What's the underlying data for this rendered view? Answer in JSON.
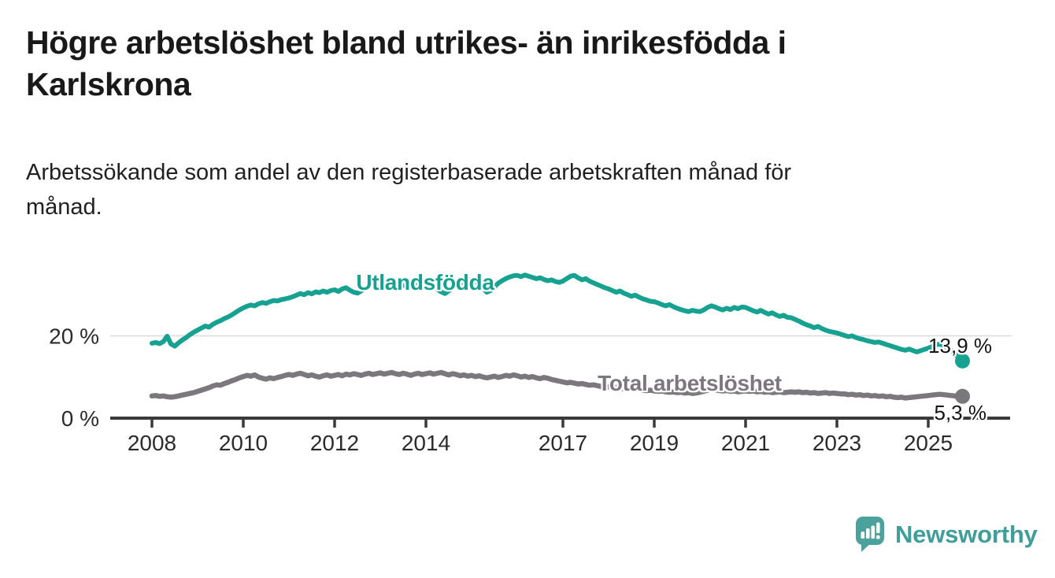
{
  "header": {
    "title_lines": [
      "Högre arbetslöshet bland utrikes- än inrikesfödda i",
      "Karlskrona"
    ],
    "subtitle_lines": [
      "Arbetssökande som andel av den registerbaserade arbetskraften månad för",
      "månad."
    ]
  },
  "chart_data": {
    "type": "line",
    "title": "Högre arbetslöshet bland utrikes- än inrikesfödda i Karlskrona",
    "subtitle": "Arbetssökande som andel av den registerbaserade arbetskraften månad för månad.",
    "unit": "%",
    "x_frequency": "monthly",
    "x_range": [
      "2008-01",
      "2025-10"
    ],
    "x_tick_labels": [
      "2008",
      "2010",
      "2012",
      "2014",
      "2017",
      "2019",
      "2021",
      "2023",
      "2025"
    ],
    "x_tick_years": [
      2008,
      2010,
      2012,
      2014,
      2017,
      2019,
      2021,
      2023,
      2025
    ],
    "y_ticks": [
      {
        "value": 0,
        "label": "0 %"
      },
      {
        "value": 20,
        "label": "20 %"
      }
    ],
    "ylim": [
      0,
      38
    ],
    "grid": "single light horizontal gridline at 20 %",
    "legend_position": "direct line labels",
    "series": [
      {
        "name": "Utlandsfödda",
        "color": "#16a191",
        "end_label": "13,9 %",
        "values": [
          18.2,
          18.4,
          18.1,
          18.6,
          19.9,
          18.0,
          17.5,
          18.3,
          19.0,
          19.6,
          20.3,
          20.9,
          21.4,
          21.9,
          22.4,
          22.1,
          22.8,
          23.3,
          23.7,
          24.2,
          24.6,
          25.1,
          25.7,
          26.3,
          26.8,
          27.2,
          27.5,
          27.3,
          27.8,
          28.1,
          27.9,
          28.3,
          28.6,
          28.5,
          28.8,
          29.0,
          29.2,
          29.5,
          29.9,
          30.3,
          30.0,
          30.5,
          30.2,
          30.7,
          30.5,
          30.9,
          30.6,
          31.0,
          31.2,
          30.8,
          31.4,
          31.7,
          31.1,
          30.6,
          30.4,
          30.9,
          31.5,
          31.9,
          32.2,
          32.0,
          31.7,
          32.0,
          31.8,
          32.3,
          32.1,
          32.5,
          32.2,
          32.6,
          32.4,
          32.7,
          32.3,
          32.5,
          32.1,
          31.7,
          32.2,
          31.3,
          30.7,
          30.3,
          30.9,
          31.6,
          32.3,
          32.7,
          33.1,
          33.5,
          33.7,
          33.3,
          32.5,
          31.5,
          30.6,
          31.0,
          31.9,
          32.8,
          33.4,
          33.9,
          34.3,
          34.6,
          34.7,
          34.4,
          34.8,
          34.5,
          34.2,
          33.9,
          34.1,
          33.7,
          33.4,
          33.6,
          33.2,
          33.0,
          33.3,
          33.9,
          34.5,
          34.7,
          34.1,
          33.6,
          33.9,
          33.3,
          32.9,
          32.5,
          32.1,
          31.7,
          31.4,
          31.0,
          30.6,
          30.9,
          30.4,
          30.0,
          29.6,
          29.9,
          29.4,
          29.0,
          28.7,
          28.4,
          28.3,
          28.0,
          27.6,
          27.3,
          27.6,
          27.1,
          26.7,
          26.4,
          26.1,
          25.9,
          26.2,
          26.0,
          25.9,
          26.3,
          26.9,
          27.3,
          27.0,
          26.6,
          26.3,
          26.7,
          26.4,
          26.9,
          26.6,
          27.0,
          26.9,
          26.5,
          26.1,
          25.8,
          26.2,
          25.7,
          25.3,
          25.6,
          25.1,
          24.7,
          25.0,
          24.5,
          24.4,
          24.0,
          23.6,
          23.1,
          22.7,
          22.4,
          22.0,
          22.3,
          21.8,
          21.4,
          21.1,
          20.9,
          20.7,
          20.4,
          20.1,
          19.8,
          20.0,
          19.6,
          19.3,
          19.1,
          18.8,
          18.6,
          18.4,
          18.5,
          18.2,
          17.9,
          17.6,
          17.3,
          17.0,
          16.7,
          16.5,
          16.8,
          16.4,
          16.1,
          16.4,
          16.7,
          17.0,
          17.4,
          17.8,
          18.0,
          17.6,
          17.1,
          16.4,
          15.6,
          14.7,
          13.9
        ]
      },
      {
        "name": "Total arbetslöshet",
        "color": "#7a787d",
        "end_label": "5,3 %",
        "values": [
          5.4,
          5.5,
          5.3,
          5.4,
          5.2,
          5.1,
          5.2,
          5.4,
          5.6,
          5.8,
          6.0,
          6.2,
          6.5,
          6.8,
          7.1,
          7.4,
          7.8,
          8.1,
          8.0,
          8.4,
          8.7,
          9.1,
          9.4,
          9.8,
          10.1,
          10.4,
          10.2,
          10.5,
          10.0,
          9.7,
          9.5,
          9.8,
          9.6,
          9.9,
          10.1,
          10.4,
          10.6,
          10.4,
          10.7,
          10.9,
          10.6,
          10.3,
          10.5,
          10.2,
          10.0,
          10.3,
          10.5,
          10.2,
          10.4,
          10.6,
          10.3,
          10.7,
          10.5,
          10.8,
          10.6,
          10.4,
          10.7,
          10.9,
          10.6,
          10.8,
          11.0,
          10.7,
          10.9,
          11.1,
          10.8,
          10.6,
          10.9,
          10.7,
          10.4,
          10.7,
          10.9,
          10.6,
          10.8,
          11.0,
          10.7,
          10.9,
          11.1,
          10.8,
          10.5,
          10.8,
          10.6,
          10.3,
          10.5,
          10.2,
          10.4,
          10.1,
          10.3,
          10.0,
          9.8,
          10.0,
          10.2,
          9.9,
          10.1,
          10.4,
          10.2,
          10.5,
          10.3,
          10.0,
          10.2,
          9.9,
          10.1,
          9.8,
          9.6,
          9.9,
          9.7,
          9.4,
          9.2,
          9.0,
          8.8,
          8.6,
          8.7,
          8.5,
          8.3,
          8.4,
          8.2,
          8.0,
          8.1,
          7.9,
          7.7,
          7.8,
          7.6,
          7.4,
          7.5,
          7.3,
          7.1,
          7.2,
          7.0,
          6.9,
          7.0,
          6.8,
          6.7,
          6.8,
          6.6,
          6.5,
          6.6,
          6.4,
          6.3,
          6.4,
          6.2,
          6.3,
          6.1,
          6.2,
          6.0,
          6.1,
          6.3,
          6.5,
          6.8,
          7.0,
          6.9,
          6.7,
          6.6,
          6.7,
          6.5,
          6.6,
          6.4,
          6.5,
          6.6,
          6.5,
          6.6,
          6.4,
          6.5,
          6.3,
          6.4,
          6.2,
          6.3,
          6.4,
          6.2,
          6.3,
          6.4,
          6.3,
          6.4,
          6.2,
          6.3,
          6.1,
          6.2,
          6.0,
          6.1,
          6.2,
          6.0,
          6.1,
          6.0,
          5.9,
          5.9,
          5.7,
          5.8,
          5.6,
          5.7,
          5.5,
          5.6,
          5.4,
          5.5,
          5.3,
          5.4,
          5.2,
          5.3,
          5.1,
          5.0,
          5.1,
          4.9,
          5.0,
          5.1,
          5.2,
          5.3,
          5.4,
          5.5,
          5.6,
          5.7,
          5.8,
          5.7,
          5.6,
          5.5,
          5.4,
          5.3,
          5.3
        ]
      }
    ]
  },
  "footer": {
    "brand": "Newsworthy",
    "logo_color": "#4ba19c"
  }
}
